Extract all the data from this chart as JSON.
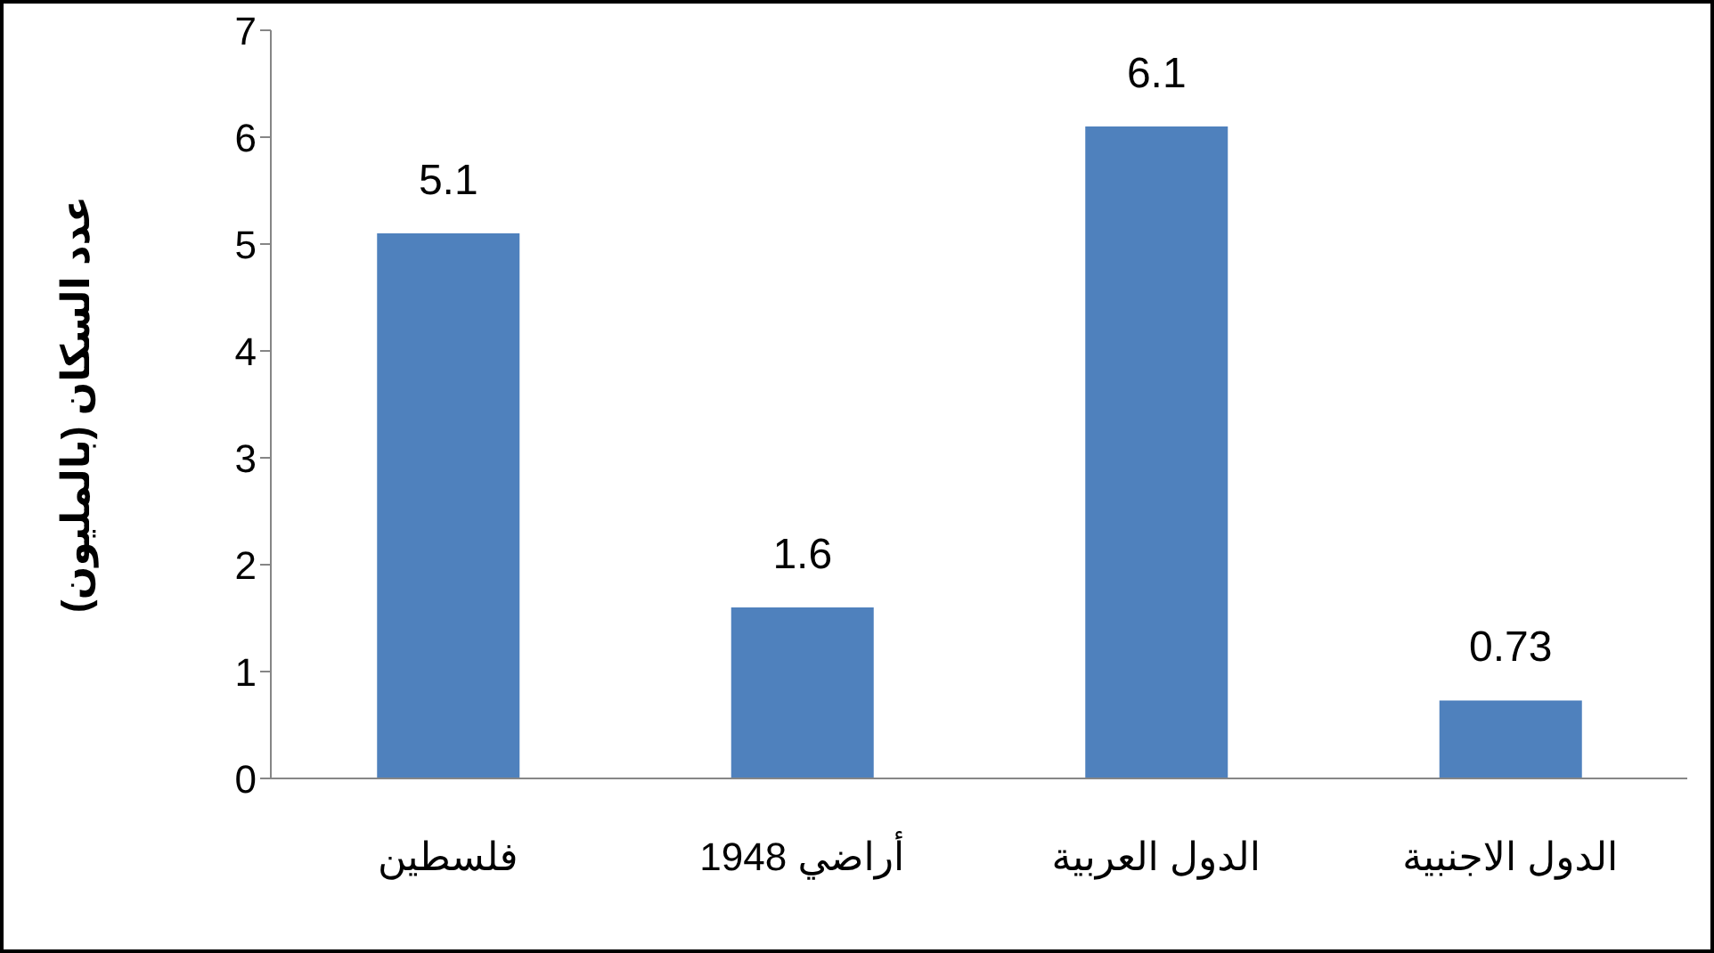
{
  "chart_data": {
    "type": "bar",
    "ylabel": "عدد السكان (بالمليون)",
    "categories": [
      "فلسطين",
      "أراضي 1948",
      "الدول العربية",
      "الدول الاجنبية"
    ],
    "values": [
      5.1,
      1.6,
      6.1,
      0.73
    ],
    "color": "#4f81bd",
    "ylim": [
      0,
      7
    ],
    "yticks": [
      0,
      1,
      2,
      3,
      4,
      5,
      6,
      7
    ],
    "grid": false,
    "data_labels": true
  }
}
